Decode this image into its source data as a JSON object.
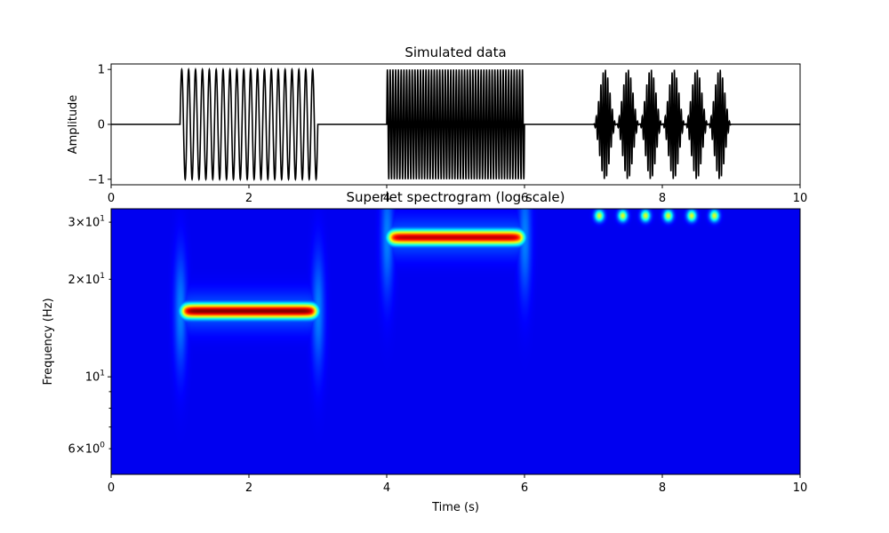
{
  "chart_data": [
    {
      "type": "line",
      "title": "Simulated data",
      "xlabel": "",
      "ylabel": "Amplitude",
      "xlim": [
        0,
        10
      ],
      "ylim": [
        -1.1,
        1.1
      ],
      "xticks": [
        "0",
        "2",
        "4",
        "6",
        "8",
        "10"
      ],
      "xtick_values": [
        0,
        2,
        4,
        6,
        8,
        10
      ],
      "yticks": [
        "−1",
        "0",
        "1"
      ],
      "ytick_values": [
        -1,
        0,
        1
      ],
      "line_color": "#000000",
      "segments": [
        {
          "t_start": 0,
          "t_end": 1,
          "kind": "zero"
        },
        {
          "t_start": 1,
          "t_end": 3,
          "kind": "sine",
          "frequency_hz": 10,
          "amplitude": 1
        },
        {
          "t_start": 3,
          "t_end": 4,
          "kind": "zero"
        },
        {
          "t_start": 4,
          "t_end": 6,
          "kind": "sine",
          "frequency_hz": 25,
          "amplitude": 1
        },
        {
          "t_start": 6,
          "t_end": 7,
          "kind": "zero"
        },
        {
          "t_start": 7,
          "t_end": 9,
          "kind": "bursts",
          "frequency_hz": 30,
          "amplitude": 1,
          "burst_rate_hz": 3
        },
        {
          "t_start": 9,
          "t_end": 10,
          "kind": "zero"
        }
      ]
    },
    {
      "type": "heatmap",
      "title": "Superlet spectrogram (log scale)",
      "xlabel": "Time (s)",
      "ylabel": "Frequency (Hz)",
      "xlim": [
        0,
        10
      ],
      "ylim": [
        5,
        33
      ],
      "yscale": "log",
      "colormap": "jet",
      "xticks": [
        "0",
        "2",
        "4",
        "6",
        "8",
        "10"
      ],
      "xtick_values": [
        0,
        2,
        4,
        6,
        8,
        10
      ],
      "ytick_major_labels": [
        {
          "value": 10,
          "base": "10",
          "exp": "1"
        }
      ],
      "ytick_minor_labels": [
        {
          "value": 6,
          "mantissa": "6",
          "base": "10",
          "exp": "0"
        },
        {
          "value": 20,
          "mantissa": "2",
          "base": "10",
          "exp": "1"
        },
        {
          "value": 30,
          "mantissa": "3",
          "base": "10",
          "exp": "1"
        }
      ],
      "ytick_minor_unlabeled": [
        7,
        8,
        9
      ],
      "bands": [
        {
          "t_start": 1,
          "t_end": 3,
          "frequency_hz": 16,
          "power": 1.0
        },
        {
          "t_start": 4,
          "t_end": 6,
          "frequency_hz": 27,
          "power": 0.93
        }
      ],
      "blobs": [
        {
          "t": 7.08,
          "frequency_hz": 31.5,
          "power": 0.55
        },
        {
          "t": 7.42,
          "frequency_hz": 31.5,
          "power": 0.55
        },
        {
          "t": 7.75,
          "frequency_hz": 31.5,
          "power": 0.55
        },
        {
          "t": 8.08,
          "frequency_hz": 31.5,
          "power": 0.55
        },
        {
          "t": 8.42,
          "frequency_hz": 31.5,
          "power": 0.55
        },
        {
          "t": 8.75,
          "frequency_hz": 31.5,
          "power": 0.55
        }
      ]
    }
  ]
}
